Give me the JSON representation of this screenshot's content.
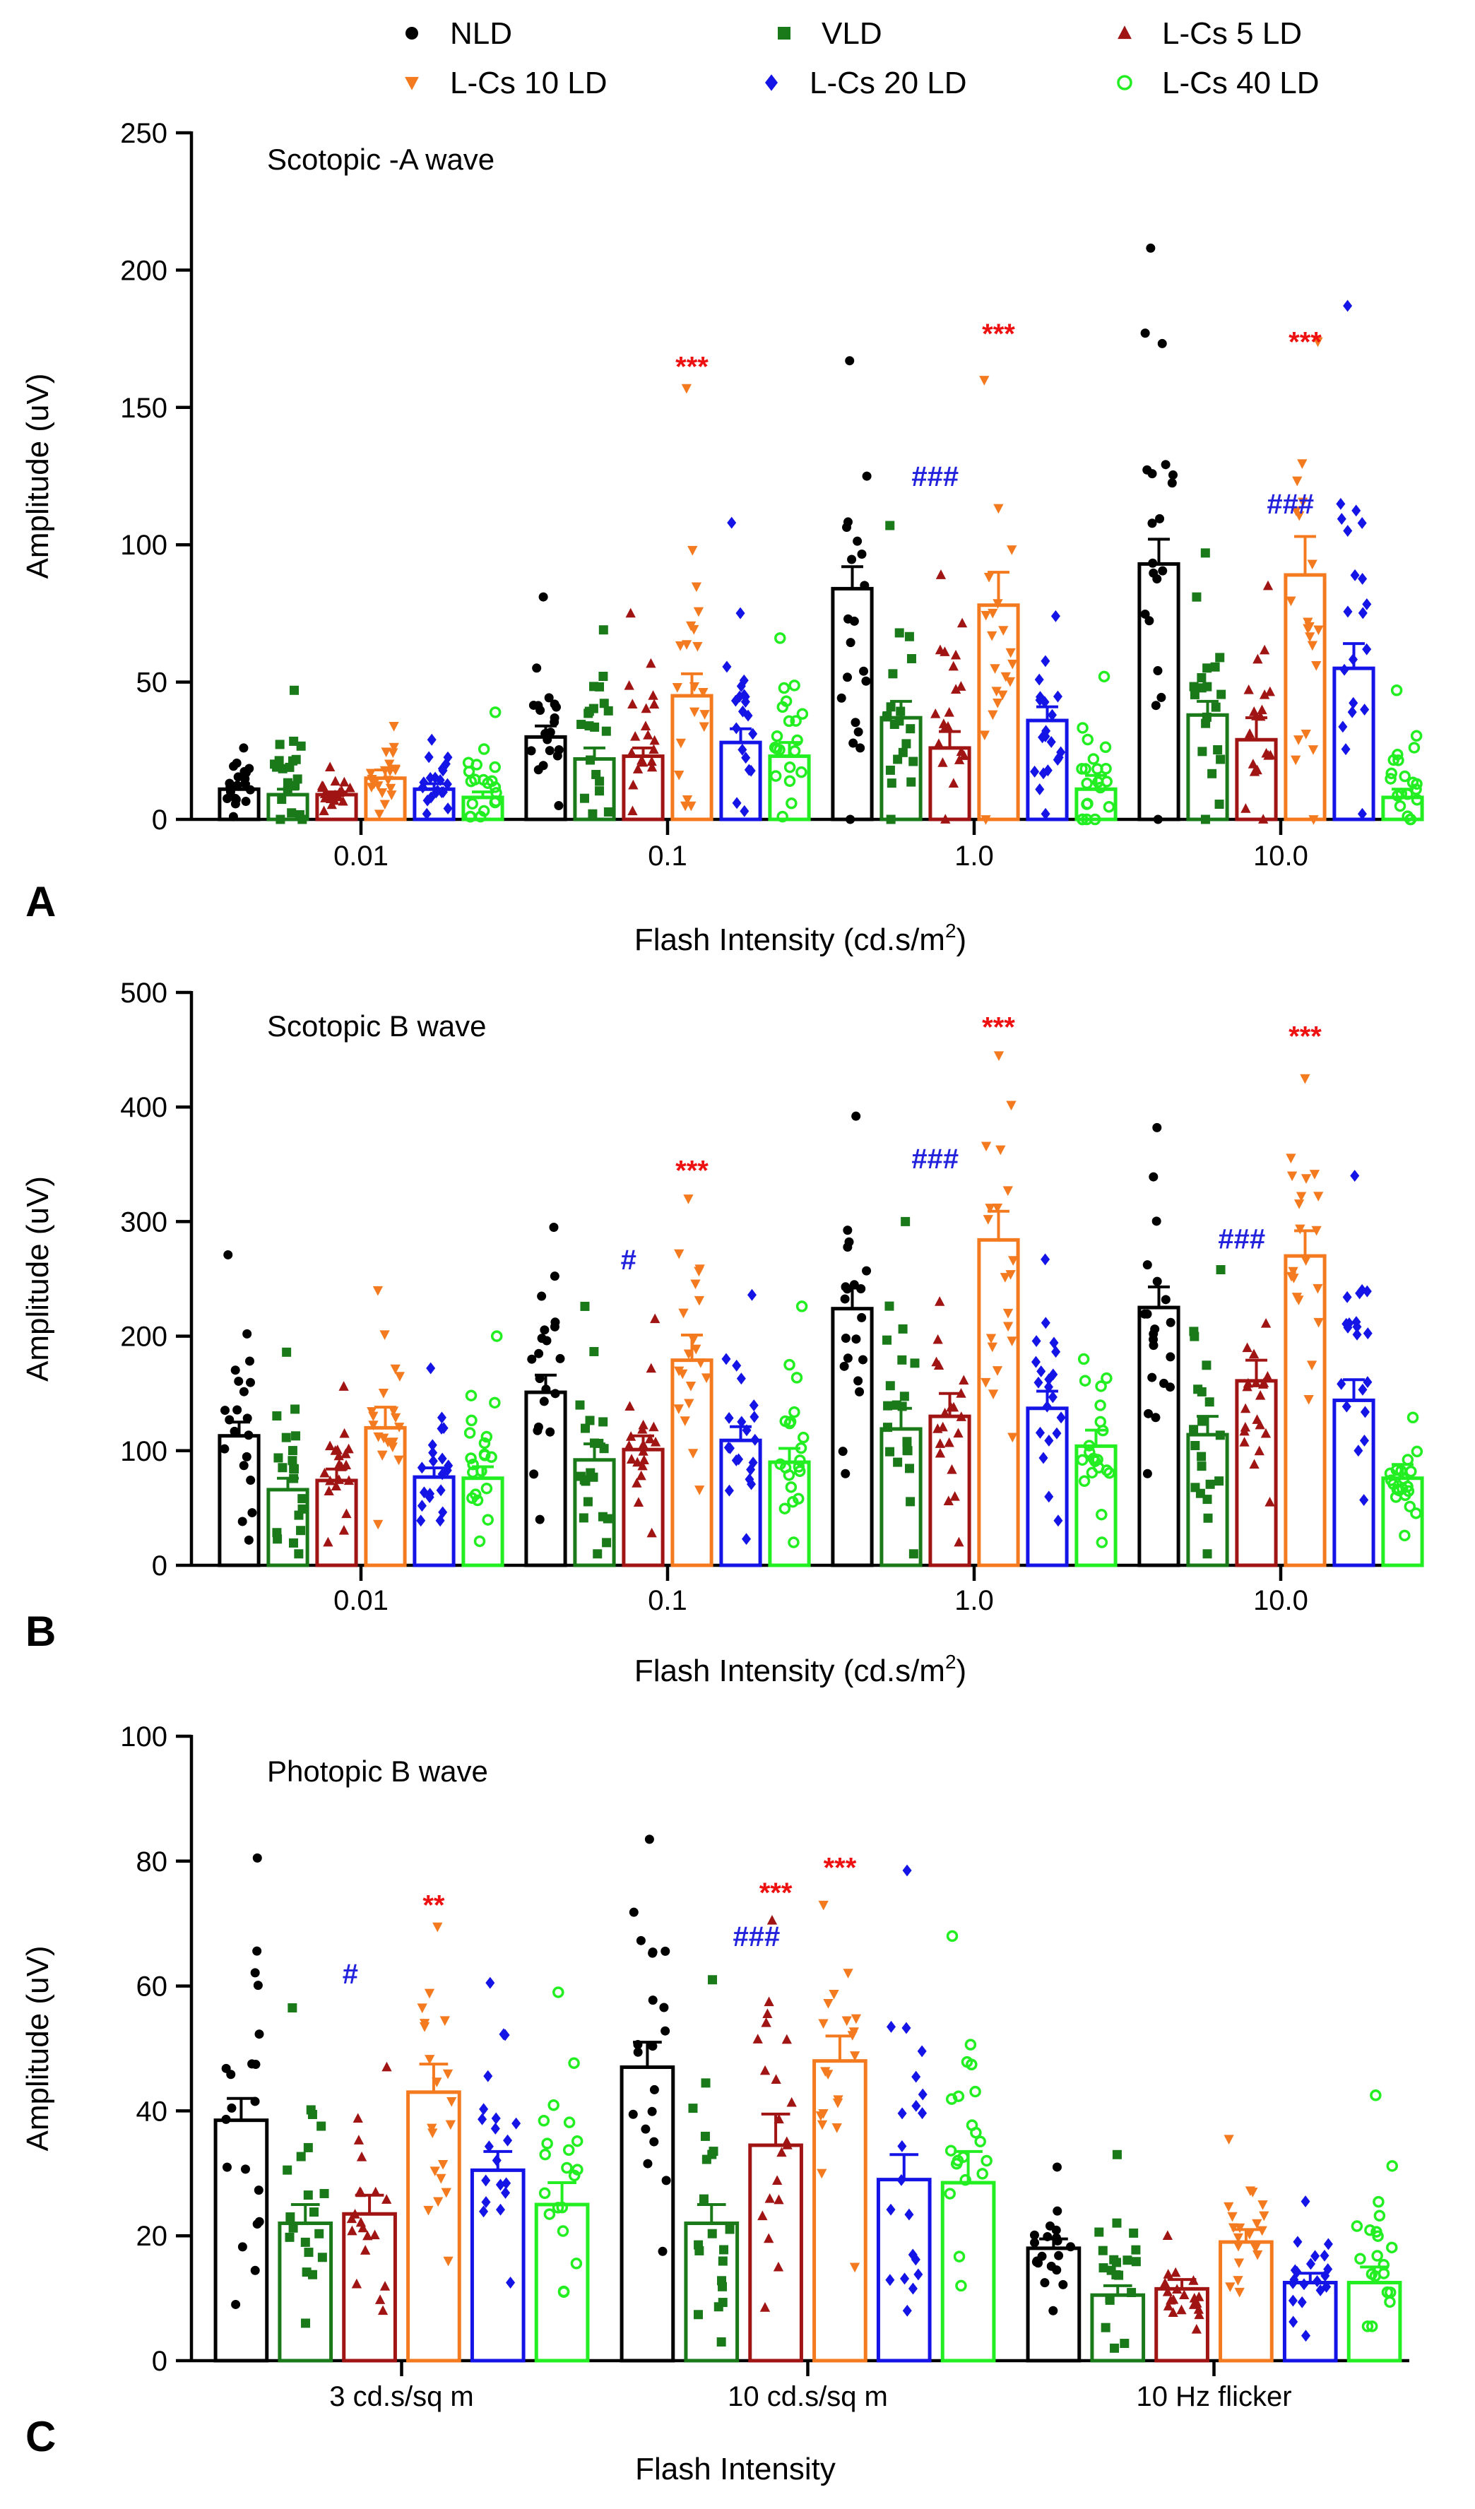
{
  "colors": {
    "NLD": "#000000",
    "VLD": "#1a7a1a",
    "L-Cs 5 LD": "#a01414",
    "L-Cs 10 LD": "#f47a20",
    "L-Cs 20 LD": "#1414e6",
    "L-Cs 40 LD": "#22ee22",
    "sig_asterisk": "#ee1111",
    "sig_hash": "#2222dd"
  },
  "legend": [
    {
      "label": "NLD",
      "marker": "circle-dot",
      "color": "#000000"
    },
    {
      "label": "VLD",
      "marker": "square",
      "color": "#1a7a1a"
    },
    {
      "label": "L-Cs 5 LD",
      "marker": "triangle-up",
      "color": "#a01414"
    },
    {
      "label": "L-Cs 10 LD",
      "marker": "triangle-down",
      "color": "#f47a20"
    },
    {
      "label": "L-Cs 20 LD",
      "marker": "diamond",
      "color": "#1414e6"
    },
    {
      "label": "L-Cs 40 LD",
      "marker": "circle-open",
      "color": "#22ee22"
    }
  ],
  "chart_data": [
    {
      "panel": "A",
      "type": "bar",
      "title": "Scotopic -A wave",
      "xlabel": "Flash Intensity (cd.s/m",
      "xlabel_sup": "2",
      "xlabel_tail": ")",
      "ylabel": "Amplitude (uV)",
      "ylim": [
        0,
        250
      ],
      "yticks": [
        0,
        50,
        100,
        150,
        200,
        250
      ],
      "categories": [
        "0.01",
        "0.1",
        "1.0",
        "10.0"
      ],
      "series": [
        {
          "name": "NLD",
          "values": [
            11,
            30,
            84,
            93
          ],
          "sem": [
            2,
            4,
            8,
            9
          ],
          "max": [
            26,
            81,
            167,
            208
          ],
          "min": [
            1,
            5,
            0,
            0
          ]
        },
        {
          "name": "VLD",
          "values": [
            9,
            22,
            37,
            38
          ],
          "sem": [
            2,
            4,
            6,
            5
          ],
          "max": [
            47,
            69,
            107,
            97
          ],
          "min": [
            0,
            2,
            0,
            0
          ]
        },
        {
          "name": "L-Cs 5 LD",
          "values": [
            9,
            23,
            26,
            29
          ],
          "sem": [
            1,
            3,
            6,
            8
          ],
          "max": [
            19,
            75,
            89,
            85
          ],
          "min": [
            3,
            3,
            0,
            0
          ]
        },
        {
          "name": "L-Cs 10 LD",
          "values": [
            15,
            45,
            78,
            89
          ],
          "sem": [
            3,
            8,
            12,
            14
          ],
          "max": [
            34,
            157,
            160,
            174
          ],
          "min": [
            2,
            5,
            0,
            0
          ]
        },
        {
          "name": "L-Cs 20 LD",
          "values": [
            11,
            28,
            36,
            55
          ],
          "sem": [
            2,
            5,
            5,
            9
          ],
          "max": [
            29,
            108,
            74,
            187
          ],
          "min": [
            2,
            3,
            2,
            2
          ]
        },
        {
          "name": "L-Cs 40 LD",
          "values": [
            8,
            23,
            11,
            8
          ],
          "sem": [
            2,
            5,
            5,
            3
          ],
          "max": [
            39,
            66,
            52,
            47
          ],
          "min": [
            1,
            1,
            0,
            0
          ]
        }
      ],
      "annotations": [
        {
          "text": "***",
          "category": "0.1",
          "series": "L-Cs 10 LD",
          "y": 165,
          "color": "#ee1111"
        },
        {
          "text": "###",
          "category": "1.0",
          "series": "VLD",
          "y": 125,
          "color": "#2222dd"
        },
        {
          "text": "***",
          "category": "1.0",
          "series": "L-Cs 10 LD",
          "y": 177,
          "color": "#ee1111"
        },
        {
          "text": "###",
          "category": "10.0",
          "series": "L-Cs 5 LD",
          "y": 115,
          "color": "#2222dd"
        },
        {
          "text": "***",
          "category": "10.0",
          "series": "L-Cs 10 LD",
          "y": 174,
          "color": "#ee1111"
        }
      ]
    },
    {
      "panel": "B",
      "type": "bar",
      "title": "Scotopic B wave",
      "xlabel": "Flash Intensity (cd.s/m",
      "xlabel_sup": "2",
      "xlabel_tail": ")",
      "ylabel": "Amplitude (uV)",
      "ylim": [
        0,
        500
      ],
      "yticks": [
        0,
        100,
        200,
        300,
        400,
        500
      ],
      "categories": [
        "0.01",
        "0.1",
        "1.0",
        "10.0"
      ],
      "series": [
        {
          "name": "NLD",
          "values": [
            113,
            151,
            224,
            225
          ],
          "sem": [
            12,
            15,
            18,
            18
          ],
          "max": [
            271,
            295,
            392,
            382
          ],
          "min": [
            22,
            40,
            80,
            80
          ]
        },
        {
          "name": "VLD",
          "values": [
            66,
            92,
            119,
            114
          ],
          "sem": [
            10,
            14,
            18,
            16
          ],
          "max": [
            186,
            226,
            300,
            258
          ],
          "min": [
            10,
            10,
            10,
            10
          ]
        },
        {
          "name": "L-Cs 5 LD",
          "values": [
            74,
            101,
            130,
            161
          ],
          "sem": [
            10,
            12,
            20,
            18
          ],
          "max": [
            156,
            215,
            230,
            211
          ],
          "min": [
            20,
            28,
            20,
            55
          ]
        },
        {
          "name": "L-Cs 10 LD",
          "values": [
            120,
            179,
            284,
            270
          ],
          "sem": [
            18,
            22,
            25,
            22
          ],
          "max": [
            240,
            320,
            445,
            425
          ],
          "min": [
            36,
            66,
            112,
            145
          ]
        },
        {
          "name": "L-Cs 20 LD",
          "values": [
            77,
            109,
            137,
            144
          ],
          "sem": [
            8,
            12,
            15,
            18
          ],
          "max": [
            172,
            236,
            267,
            340
          ],
          "min": [
            39,
            23,
            39,
            57
          ]
        },
        {
          "name": "L-Cs 40 LD",
          "values": [
            76,
            90,
            104,
            76
          ],
          "sem": [
            10,
            12,
            14,
            12
          ],
          "max": [
            200,
            226,
            180,
            129
          ],
          "min": [
            21,
            20,
            20,
            26
          ]
        }
      ],
      "annotations": [
        {
          "text": "#",
          "category": "0.1",
          "series": "VLD",
          "y": 267,
          "color": "#2222dd"
        },
        {
          "text": "***",
          "category": "0.1",
          "series": "L-Cs 10 LD",
          "y": 345,
          "color": "#ee1111"
        },
        {
          "text": "###",
          "category": "1.0",
          "series": "VLD",
          "y": 355,
          "color": "#2222dd"
        },
        {
          "text": "***",
          "category": "1.0",
          "series": "L-Cs 10 LD",
          "y": 470,
          "color": "#ee1111"
        },
        {
          "text": "###",
          "category": "10.0",
          "series": "VLD",
          "y": 285,
          "color": "#2222dd"
        },
        {
          "text": "***",
          "category": "10.0",
          "series": "L-Cs 10 LD",
          "y": 462,
          "color": "#ee1111"
        }
      ]
    },
    {
      "panel": "C",
      "type": "bar",
      "title": "Photopic B wave",
      "xlabel": "Flash Intensity",
      "xlabel_sup": "",
      "xlabel_tail": "",
      "ylabel": "Amplitude (uV)",
      "ylim": [
        0,
        100
      ],
      "yticks": [
        0,
        20,
        40,
        60,
        80,
        100
      ],
      "categories": [
        "3 cd.s/sq m",
        "10 cd.s/sq m",
        "10 Hz flicker"
      ],
      "series": [
        {
          "name": "NLD",
          "values": [
            38.5,
            47,
            18
          ],
          "sem": [
            3.5,
            4,
            1.5
          ],
          "max": [
            80.5,
            83.5,
            31
          ],
          "min": [
            9,
            17.5,
            8
          ]
        },
        {
          "name": "VLD",
          "values": [
            22,
            22,
            10.5
          ],
          "sem": [
            3,
            3,
            1.5
          ],
          "max": [
            56.5,
            61,
            33
          ],
          "min": [
            6,
            3,
            2
          ]
        },
        {
          "name": "L-Cs 5 LD",
          "values": [
            23.5,
            34.5,
            11.5
          ],
          "sem": [
            3,
            5,
            1.5
          ],
          "max": [
            47,
            70.5,
            20
          ],
          "min": [
            8,
            8.5,
            5
          ]
        },
        {
          "name": "L-Cs 10 LD",
          "values": [
            43,
            48,
            19
          ],
          "sem": [
            4.5,
            4,
            2
          ],
          "max": [
            69.5,
            73,
            35.5
          ],
          "min": [
            16,
            15,
            11
          ]
        },
        {
          "name": "L-Cs 20 LD",
          "values": [
            30.5,
            29,
            12.5
          ],
          "sem": [
            3,
            4,
            1.5
          ],
          "max": [
            60.5,
            78.5,
            25.5
          ],
          "min": [
            12.5,
            8,
            4
          ]
        },
        {
          "name": "L-Cs 40 LD",
          "values": [
            25,
            28.5,
            12.5
          ],
          "sem": [
            3.5,
            5,
            2.5
          ],
          "max": [
            59,
            68,
            42.5
          ],
          "min": [
            11,
            12,
            5.5
          ]
        }
      ],
      "annotations": [
        {
          "text": "#",
          "category": "3 cd.s/sq m",
          "series": "VLD",
          "y": 62,
          "color": "#2222dd"
        },
        {
          "text": "**",
          "category": "3 cd.s/sq m",
          "series": "L-Cs 10 LD",
          "y": 73,
          "color": "#ee1111"
        },
        {
          "text": "###",
          "category": "10 cd.s/sq m",
          "series": "VLD",
          "y": 68,
          "color": "#2222dd"
        },
        {
          "text": "***",
          "category": "10 cd.s/sq m",
          "series": "L-Cs 5 LD",
          "y": 75,
          "color": "#ee1111"
        },
        {
          "text": "***",
          "category": "10 cd.s/sq m",
          "series": "L-Cs 10 LD",
          "y": 79,
          "color": "#ee1111"
        }
      ]
    }
  ]
}
